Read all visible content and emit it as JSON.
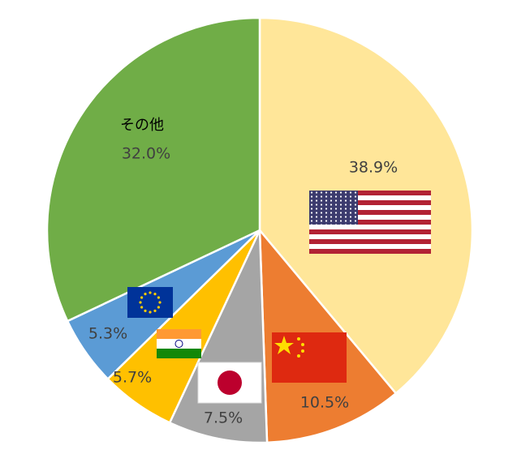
{
  "chart_data": {
    "type": "pie",
    "categories": [
      null,
      null,
      null,
      null,
      null,
      "その他"
    ],
    "values": [
      38.9,
      10.5,
      7.5,
      5.7,
      5.3,
      32.0
    ],
    "value_labels": [
      "38.9%",
      "10.5%",
      "7.5%",
      "5.7%",
      "5.3%",
      "32.0%"
    ],
    "colors": [
      "#FFE699",
      "#ED7D31",
      "#A5A5A5",
      "#FFC000",
      "#5B9BD5",
      "#70AD47"
    ]
  }
}
